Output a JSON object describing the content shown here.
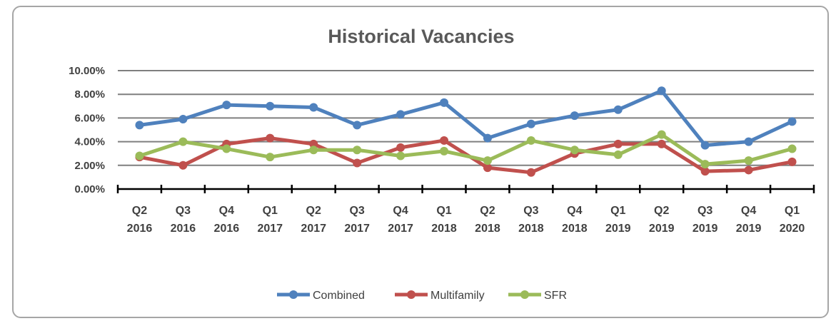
{
  "chart_data": {
    "type": "line",
    "title": "Historical Vacancies",
    "xlabel": "",
    "ylabel": "",
    "ylim": [
      0,
      10
    ],
    "y_ticks": [
      0,
      2,
      4,
      6,
      8,
      10
    ],
    "y_tick_labels": [
      "0.00%",
      "2.00%",
      "4.00%",
      "6.00%",
      "8.00%",
      "10.00%"
    ],
    "categories": [
      [
        "Q2",
        "2016"
      ],
      [
        "Q3",
        "2016"
      ],
      [
        "Q4",
        "2016"
      ],
      [
        "Q1",
        "2017"
      ],
      [
        "Q2",
        "2017"
      ],
      [
        "Q3",
        "2017"
      ],
      [
        "Q4",
        "2017"
      ],
      [
        "Q1",
        "2018"
      ],
      [
        "Q2",
        "2018"
      ],
      [
        "Q3",
        "2018"
      ],
      [
        "Q4",
        "2018"
      ],
      [
        "Q1",
        "2019"
      ],
      [
        "Q2",
        "2019"
      ],
      [
        "Q3",
        "2019"
      ],
      [
        "Q4",
        "2019"
      ],
      [
        "Q1",
        "2020"
      ]
    ],
    "series": [
      {
        "name": "Combined",
        "color": "#4f81bd",
        "values": [
          5.4,
          5.9,
          7.1,
          7.0,
          6.9,
          5.4,
          6.3,
          7.3,
          4.3,
          5.5,
          6.2,
          6.7,
          8.3,
          3.7,
          4.0,
          5.7
        ]
      },
      {
        "name": "Multifamily",
        "color": "#c0504d",
        "values": [
          2.7,
          2.0,
          3.8,
          4.3,
          3.8,
          2.2,
          3.5,
          4.1,
          1.8,
          1.4,
          3.0,
          3.8,
          3.8,
          1.5,
          1.6,
          2.3
        ]
      },
      {
        "name": "SFR",
        "color": "#9bbb59",
        "values": [
          2.8,
          4.0,
          3.4,
          2.7,
          3.3,
          3.3,
          2.8,
          3.2,
          2.4,
          4.1,
          3.3,
          2.9,
          4.6,
          2.1,
          2.4,
          3.4
        ]
      }
    ],
    "grid": true,
    "legend_position": "bottom"
  }
}
